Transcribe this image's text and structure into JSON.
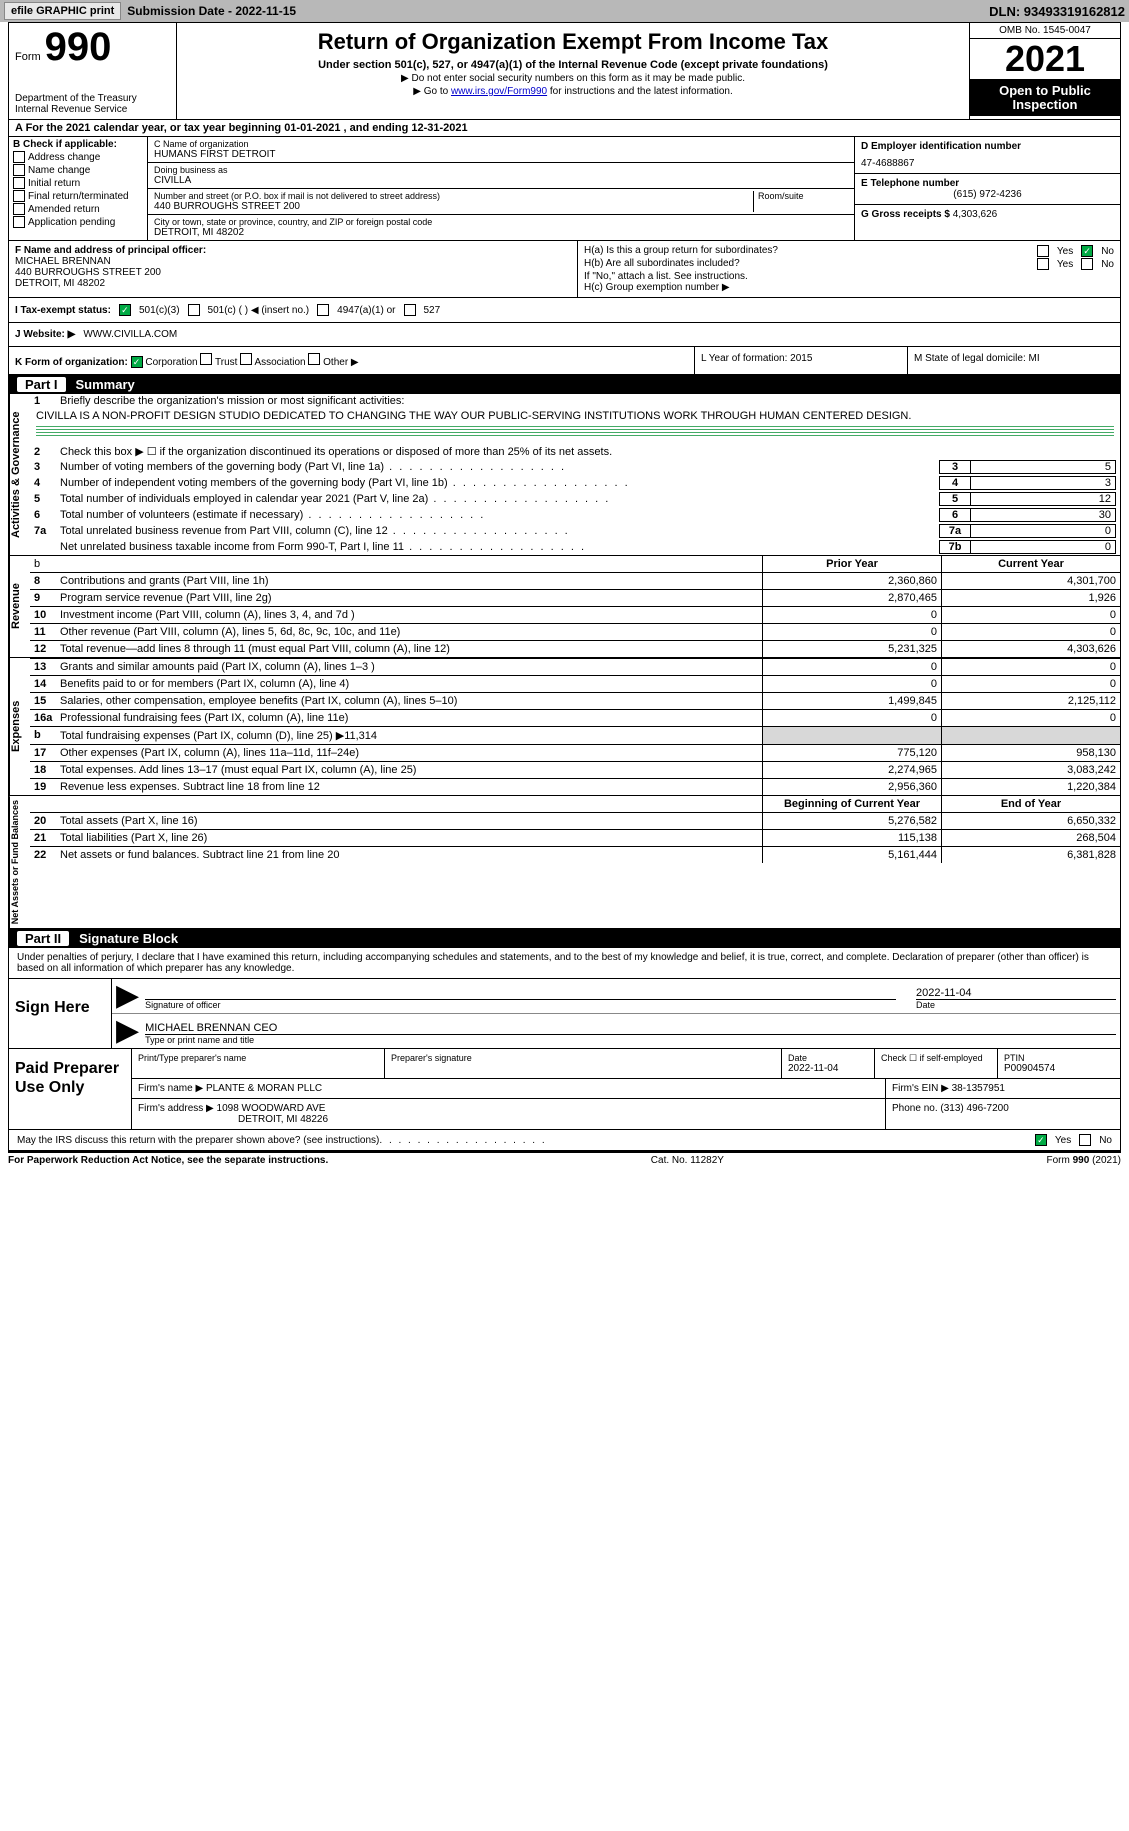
{
  "toolbar": {
    "efile": "efile GRAPHIC print",
    "submission": "Submission Date - 2022-11-15",
    "dln": "DLN: 93493319162812"
  },
  "header": {
    "form_word": "Form",
    "form_num": "990",
    "title": "Return of Organization Exempt From Income Tax",
    "subtitle": "Under section 501(c), 527, or 4947(a)(1) of the Internal Revenue Code (except private foundations)",
    "note1": "▶ Do not enter social security numbers on this form as it may be made public.",
    "note2_pre": "▶ Go to ",
    "note2_link": "www.irs.gov/Form990",
    "note2_post": " for instructions and the latest information.",
    "dept": "Department of the Treasury Internal Revenue Service",
    "omb": "OMB No. 1545-0047",
    "year": "2021",
    "open": "Open to Public Inspection"
  },
  "cal_year": "A For the 2021 calendar year, or tax year beginning 01-01-2021    , and ending 12-31-2021",
  "b": {
    "head": "B Check if applicable:",
    "opts": [
      "Address change",
      "Name change",
      "Initial return",
      "Final return/terminated",
      "Amended return",
      "Application pending"
    ]
  },
  "c": {
    "name_label": "C Name of organization",
    "name": "HUMANS FIRST DETROIT",
    "dba_label": "Doing business as",
    "dba": "CIVILLA",
    "street_label": "Number and street (or P.O. box if mail is not delivered to street address)",
    "street": "440 BURROUGHS STREET 200",
    "room_label": "Room/suite",
    "city_label": "City or town, state or province, country, and ZIP or foreign postal code",
    "city": "DETROIT, MI  48202"
  },
  "d": {
    "ein_label": "D Employer identification number",
    "ein": "47-4688867",
    "phone_label": "E Telephone number",
    "phone": "(615) 972-4236",
    "gross_label": "G Gross receipts $",
    "gross": "4,303,626"
  },
  "f": {
    "label": "F Name and address of principal officer:",
    "name": "MICHAEL BRENNAN",
    "addr1": "440 BURROUGHS STREET 200",
    "addr2": "DETROIT, MI  48202"
  },
  "h": {
    "a": "H(a)  Is this a group return for subordinates?",
    "b": "H(b)  Are all subordinates included?",
    "note": "If \"No,\" attach a list. See instructions.",
    "c": "H(c)  Group exemption number ▶",
    "yes": "Yes",
    "no": "No"
  },
  "i": {
    "label": "I    Tax-exempt status:",
    "o1": "501(c)(3)",
    "o2": "501(c) (  ) ◀ (insert no.)",
    "o3": "4947(a)(1) or",
    "o4": "527"
  },
  "j": {
    "label": "J   Website: ▶",
    "val": "WWW.CIVILLA.COM"
  },
  "k": {
    "label": "K Form of organization:",
    "o1": "Corporation",
    "o2": "Trust",
    "o3": "Association",
    "o4": "Other ▶"
  },
  "l": {
    "label": "L Year of formation:",
    "val": "2015"
  },
  "m": {
    "label": "M State of legal domicile:",
    "val": "MI"
  },
  "parts": {
    "p1": "Part I",
    "p1_title": "Summary",
    "p2": "Part II",
    "p2_title": "Signature Block"
  },
  "tabs": {
    "ag": "Activities & Governance",
    "rev": "Revenue",
    "exp": "Expenses",
    "net": "Net Assets or Fund Balances"
  },
  "summary": {
    "l1": "Briefly describe the organization's mission or most significant activities:",
    "mission": "CIVILLA IS A NON-PROFIT DESIGN STUDIO DEDICATED TO CHANGING THE WAY OUR PUBLIC-SERVING INSTITUTIONS WORK THROUGH HUMAN CENTERED DESIGN.",
    "l2": "Check this box ▶ ☐ if the organization discontinued its operations or disposed of more than 25% of its net assets.",
    "rows_single": [
      {
        "n": "3",
        "d": "Number of voting members of the governing body (Part VI, line 1a)",
        "b": "3",
        "v": "5"
      },
      {
        "n": "4",
        "d": "Number of independent voting members of the governing body (Part VI, line 1b)",
        "b": "4",
        "v": "3"
      },
      {
        "n": "5",
        "d": "Total number of individuals employed in calendar year 2021 (Part V, line 2a)",
        "b": "5",
        "v": "12"
      },
      {
        "n": "6",
        "d": "Total number of volunteers (estimate if necessary)",
        "b": "6",
        "v": "30"
      },
      {
        "n": "7a",
        "d": "Total unrelated business revenue from Part VIII, column (C), line 12",
        "b": "7a",
        "v": "0"
      },
      {
        "n": "",
        "d": "Net unrelated business taxable income from Form 990-T, Part I, line 11",
        "b": "7b",
        "v": "0"
      }
    ],
    "col_py": "Prior Year",
    "col_cy": "Current Year",
    "rev_rows": [
      {
        "n": "8",
        "d": "Contributions and grants (Part VIII, line 1h)",
        "py": "2,360,860",
        "cy": "4,301,700"
      },
      {
        "n": "9",
        "d": "Program service revenue (Part VIII, line 2g)",
        "py": "2,870,465",
        "cy": "1,926"
      },
      {
        "n": "10",
        "d": "Investment income (Part VIII, column (A), lines 3, 4, and 7d )",
        "py": "0",
        "cy": "0"
      },
      {
        "n": "11",
        "d": "Other revenue (Part VIII, column (A), lines 5, 6d, 8c, 9c, 10c, and 11e)",
        "py": "0",
        "cy": "0"
      },
      {
        "n": "12",
        "d": "Total revenue—add lines 8 through 11 (must equal Part VIII, column (A), line 12)",
        "py": "5,231,325",
        "cy": "4,303,626"
      }
    ],
    "exp_rows": [
      {
        "n": "13",
        "d": "Grants and similar amounts paid (Part IX, column (A), lines 1–3 )",
        "py": "0",
        "cy": "0"
      },
      {
        "n": "14",
        "d": "Benefits paid to or for members (Part IX, column (A), line 4)",
        "py": "0",
        "cy": "0"
      },
      {
        "n": "15",
        "d": "Salaries, other compensation, employee benefits (Part IX, column (A), lines 5–10)",
        "py": "1,499,845",
        "cy": "2,125,112"
      },
      {
        "n": "16a",
        "d": "Professional fundraising fees (Part IX, column (A), line 11e)",
        "py": "0",
        "cy": "0"
      },
      {
        "n": "b",
        "d": "Total fundraising expenses (Part IX, column (D), line 25) ▶11,314",
        "py": "",
        "cy": "",
        "gray": true
      },
      {
        "n": "17",
        "d": "Other expenses (Part IX, column (A), lines 11a–11d, 11f–24e)",
        "py": "775,120",
        "cy": "958,130"
      },
      {
        "n": "18",
        "d": "Total expenses. Add lines 13–17 (must equal Part IX, column (A), line 25)",
        "py": "2,274,965",
        "cy": "3,083,242"
      },
      {
        "n": "19",
        "d": "Revenue less expenses. Subtract line 18 from line 12",
        "py": "2,956,360",
        "cy": "1,220,384"
      }
    ],
    "col_by": "Beginning of Current Year",
    "col_ey": "End of Year",
    "net_rows": [
      {
        "n": "20",
        "d": "Total assets (Part X, line 16)",
        "py": "5,276,582",
        "cy": "6,650,332"
      },
      {
        "n": "21",
        "d": "Total liabilities (Part X, line 26)",
        "py": "115,138",
        "cy": "268,504"
      },
      {
        "n": "22",
        "d": "Net assets or fund balances. Subtract line 21 from line 20",
        "py": "5,161,444",
        "cy": "6,381,828"
      }
    ]
  },
  "penalty": "Under penalties of perjury, I declare that I have examined this return, including accompanying schedules and statements, and to the best of my knowledge and belief, it is true, correct, and complete. Declaration of preparer (other than officer) is based on all information of which preparer has any knowledge.",
  "sign": {
    "left": "Sign Here",
    "date": "2022-11-04",
    "sig_label": "Signature of officer",
    "date_label": "Date",
    "name": "MICHAEL BRENNAN  CEO",
    "name_label": "Type or print name and title"
  },
  "preparer": {
    "left": "Paid Preparer Use Only",
    "h_name": "Print/Type preparer's name",
    "h_sig": "Preparer's signature",
    "h_date": "Date",
    "date": "2022-11-04",
    "h_check": "Check ☐ if self-employed",
    "h_ptin": "PTIN",
    "ptin": "P00904574",
    "firm_label": "Firm's name      ▶",
    "firm": "PLANTE & MORAN PLLC",
    "ein_label": "Firm's EIN ▶",
    "ein": "38-1357951",
    "addr_label": "Firm's address ▶",
    "addr1": "1098 WOODWARD AVE",
    "addr2": "DETROIT, MI  48226",
    "phone_label": "Phone no.",
    "phone": "(313) 496-7200"
  },
  "discuss": {
    "text": "May the IRS discuss this return with the preparer shown above? (see instructions)",
    "yes": "Yes",
    "no": "No"
  },
  "footer": {
    "left": "For Paperwork Reduction Act Notice, see the separate instructions.",
    "mid": "Cat. No. 11282Y",
    "right": "Form 990 (2021)"
  }
}
